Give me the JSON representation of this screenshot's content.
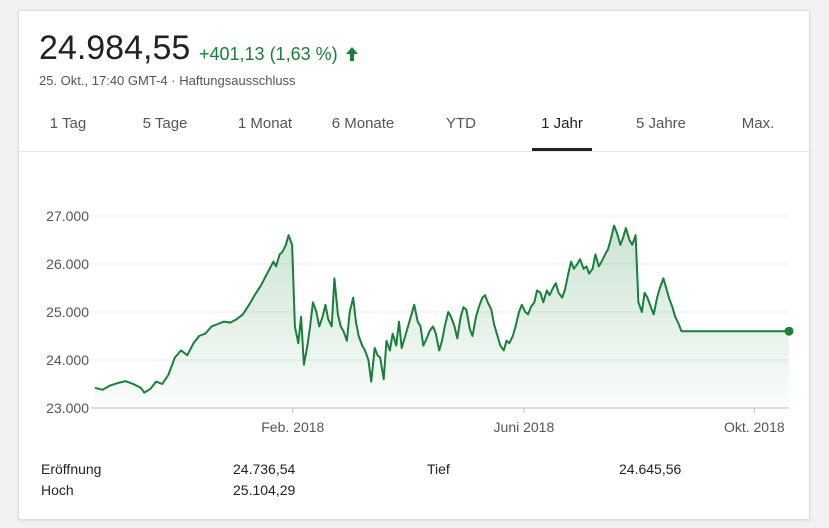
{
  "header": {
    "price": "24.984,55",
    "change": "+401,13 (1,63 %)",
    "timestamp": "25. Okt., 17:40 GMT-4",
    "separator": "·",
    "disclaimer": "Haftungsausschluss",
    "accent_color": "#188038"
  },
  "tabs": [
    {
      "label": "1 Tag"
    },
    {
      "label": "5 Tage"
    },
    {
      "label": "1 Monat"
    },
    {
      "label": "6 Monate"
    },
    {
      "label": "YTD"
    },
    {
      "label": "1 Jahr",
      "active": true
    },
    {
      "label": "5 Jahre"
    },
    {
      "label": "Max."
    }
  ],
  "stats": {
    "open_label": "Eröffnung",
    "open_value": "24.736,54",
    "high_label": "Hoch",
    "high_value": "25.104,29",
    "low_label": "Tief",
    "low_value": "24.645,56"
  },
  "chart_data": {
    "type": "area",
    "title": "",
    "xlabel": "",
    "ylabel": "",
    "ylim": [
      23000,
      27000
    ],
    "y_ticks": [
      {
        "value": 27000,
        "label": "27.000"
      },
      {
        "value": 26000,
        "label": "26.000"
      },
      {
        "value": 25000,
        "label": "25.000"
      },
      {
        "value": 24000,
        "label": "24.000"
      },
      {
        "value": 23000,
        "label": "23.000"
      }
    ],
    "x_ticks": [
      {
        "x": 0.285,
        "label": "Feb. 2018"
      },
      {
        "x": 0.618,
        "label": "Juni 2018"
      },
      {
        "x": 0.95,
        "label": "Okt. 2018"
      }
    ],
    "line_color": "#188038",
    "grid": true,
    "series": [
      {
        "x": [
          0.0,
          0.011,
          0.022,
          0.033,
          0.044,
          0.055,
          0.066,
          0.071,
          0.08,
          0.088,
          0.097,
          0.106,
          0.115,
          0.124,
          0.133,
          0.142,
          0.15,
          0.159,
          0.168,
          0.177,
          0.186,
          0.195,
          0.204,
          0.213,
          0.222,
          0.23,
          0.239,
          0.248,
          0.257,
          0.261,
          0.266,
          0.27,
          0.275,
          0.279,
          0.284,
          0.288,
          0.293,
          0.297,
          0.301,
          0.306,
          0.31,
          0.314,
          0.319,
          0.323,
          0.328,
          0.332,
          0.336,
          0.341,
          0.345,
          0.35,
          0.354,
          0.358,
          0.363,
          0.367,
          0.372,
          0.376,
          0.38,
          0.385,
          0.389,
          0.394,
          0.398,
          0.403,
          0.407,
          0.411,
          0.416,
          0.42,
          0.425,
          0.429,
          0.434,
          0.438,
          0.442,
          0.447,
          0.451,
          0.456,
          0.46,
          0.465,
          0.469,
          0.473,
          0.478,
          0.482,
          0.487,
          0.491,
          0.496,
          0.5,
          0.504,
          0.509,
          0.513,
          0.518,
          0.522,
          0.527,
          0.531,
          0.535,
          0.54,
          0.544,
          0.549,
          0.553,
          0.558,
          0.562,
          0.566,
          0.571,
          0.575,
          0.58,
          0.584,
          0.589,
          0.593,
          0.597,
          0.602,
          0.606,
          0.611,
          0.615,
          0.62,
          0.624,
          0.628,
          0.633,
          0.637,
          0.642,
          0.646,
          0.651,
          0.655,
          0.66,
          0.664,
          0.668,
          0.673,
          0.677,
          0.682,
          0.686,
          0.69,
          0.695,
          0.699,
          0.704,
          0.708,
          0.712,
          0.717,
          0.721,
          0.726,
          0.73,
          0.735,
          0.739,
          0.743,
          0.748,
          0.752,
          0.757,
          0.761,
          0.765,
          0.77,
          0.774,
          0.779,
          0.783,
          0.788,
          0.792,
          0.796,
          0.801,
          0.805,
          0.81,
          0.814,
          0.819,
          0.823,
          0.827,
          0.832,
          0.836,
          0.841,
          0.845,
          0.85,
          0.854,
          0.858,
          0.863,
          0.867,
          0.872,
          0.876,
          0.881,
          0.885,
          0.889,
          0.894,
          0.898,
          0.903,
          0.907,
          0.911,
          0.916,
          0.92,
          0.925,
          0.929,
          0.934,
          0.938,
          0.942,
          0.947,
          0.951,
          0.956,
          0.96,
          0.964,
          0.969,
          0.973,
          0.978,
          0.982,
          0.986,
          0.991,
          1.0
        ],
        "values": [
          23420,
          23380,
          23470,
          23520,
          23560,
          23500,
          23420,
          23320,
          23400,
          23550,
          23500,
          23700,
          24050,
          24200,
          24100,
          24350,
          24500,
          24550,
          24700,
          24750,
          24800,
          24780,
          24850,
          24950,
          25150,
          25350,
          25550,
          25800,
          26050,
          25950,
          26200,
          26250,
          26400,
          26600,
          26400,
          24700,
          24350,
          24900,
          23900,
          24300,
          24700,
          25200,
          25000,
          24700,
          24900,
          25150,
          24850,
          24700,
          25700,
          24950,
          24700,
          24600,
          24400,
          25000,
          25300,
          24800,
          24500,
          24300,
          24200,
          24000,
          23550,
          24250,
          24100,
          24050,
          23600,
          24400,
          24200,
          24550,
          24300,
          24800,
          24250,
          24500,
          24700,
          24950,
          25150,
          24800,
          24700,
          24300,
          24450,
          24600,
          24700,
          24550,
          24200,
          24400,
          24700,
          25000,
          24900,
          24700,
          24450,
          24900,
          25100,
          25050,
          24650,
          24500,
          24900,
          25100,
          25300,
          25350,
          25200,
          25050,
          24750,
          24500,
          24300,
          24200,
          24400,
          24350,
          24500,
          24700,
          25000,
          25150,
          25000,
          24950,
          25100,
          25200,
          25450,
          25400,
          25200,
          25450,
          25350,
          25500,
          25600,
          25400,
          25300,
          25450,
          25800,
          26050,
          25900,
          26000,
          26100,
          25900,
          25950,
          25800,
          25900,
          26200,
          25950,
          26050,
          26200,
          26300,
          26500,
          26800,
          26650,
          26400,
          26550,
          26750,
          26500,
          26400,
          26600,
          25200,
          25000,
          25400,
          25300,
          25100,
          24950,
          25300,
          25500,
          25700,
          25500,
          25300,
          25100,
          24900,
          24750,
          24600,
          24600,
          24600,
          24600,
          24600,
          24600,
          24600,
          24600,
          24600,
          24600,
          24600,
          24600,
          24600,
          24600,
          24600,
          24600,
          24600,
          24600,
          24600,
          24600,
          24600,
          24600,
          24600,
          24600,
          24600,
          24600,
          24600,
          24600,
          24600,
          24600,
          24600,
          24600,
          24600,
          24600,
          24600
        ]
      }
    ]
  }
}
